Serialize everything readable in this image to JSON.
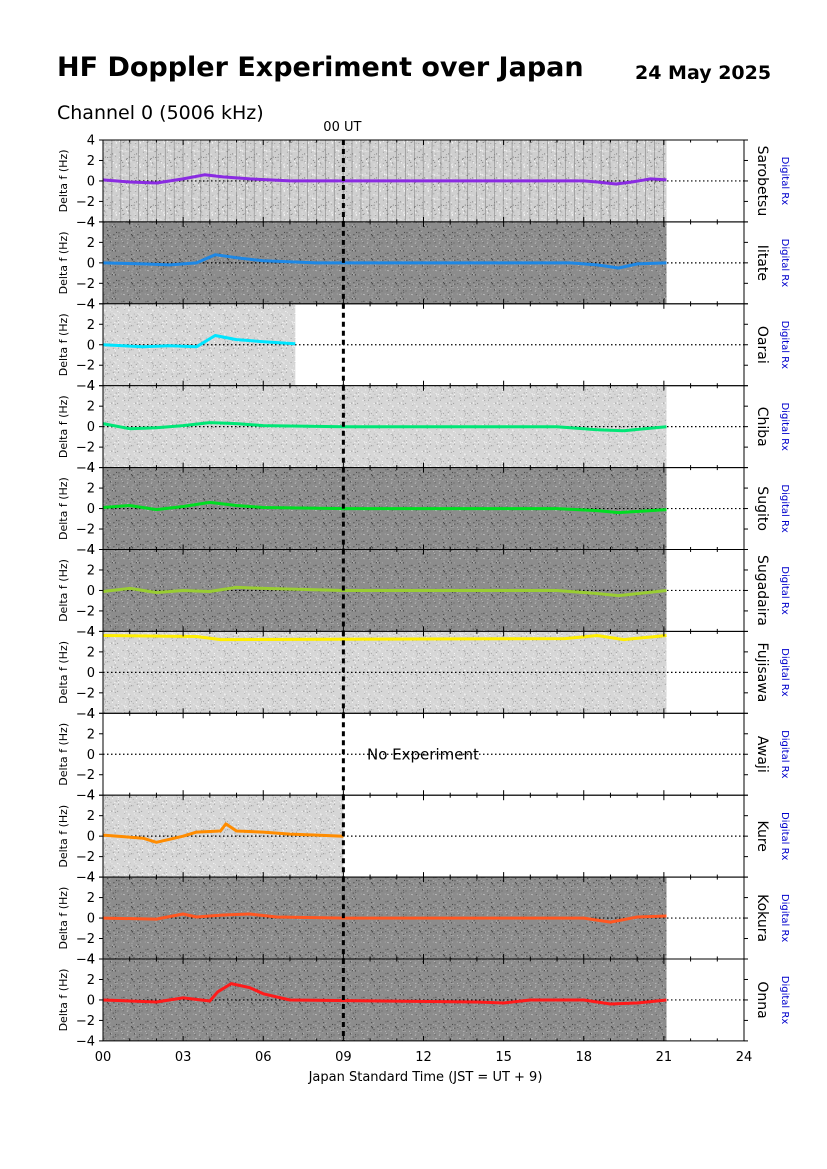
{
  "header": {
    "title": "HF Doppler Experiment over Japan",
    "date": "24 May 2025",
    "channel": "Channel 0 (5006 kHz)"
  },
  "chart_data": {
    "type": "spectrogram-stack",
    "xlabel": "Japan Standard Time (JST = UT + 9)",
    "x_range": [
      0,
      24
    ],
    "x_ticks": [
      "00",
      "03",
      "06",
      "09",
      "12",
      "15",
      "18",
      "21",
      "24"
    ],
    "ut_marker": {
      "label": "00 UT",
      "x": 9
    },
    "ylabel": "Delta f (Hz)",
    "y_range": [
      -4,
      4
    ],
    "y_ticks": [
      "4",
      "2",
      "0",
      "−2",
      "−4"
    ],
    "receiver_label": "Digital Rx",
    "no_experiment_text": "No Experiment",
    "panels": [
      {
        "station": "Sarobetsu",
        "color": "#8a2be2",
        "data_end": 21.1,
        "background": "striped-light",
        "trace": [
          [
            0,
            0.1
          ],
          [
            1,
            -0.1
          ],
          [
            2,
            -0.2
          ],
          [
            3,
            0.2
          ],
          [
            3.8,
            0.6
          ],
          [
            4.5,
            0.4
          ],
          [
            5.5,
            0.2
          ],
          [
            7,
            0
          ],
          [
            18,
            0
          ],
          [
            18.5,
            -0.1
          ],
          [
            19.2,
            -0.3
          ],
          [
            19.8,
            -0.1
          ],
          [
            20.5,
            0.2
          ],
          [
            21.1,
            0.1
          ]
        ]
      },
      {
        "station": "Iitate",
        "color": "#1e88e5",
        "data_end": 21.1,
        "background": "dark",
        "trace": [
          [
            0,
            0
          ],
          [
            1.5,
            -0.1
          ],
          [
            2.5,
            -0.2
          ],
          [
            3.5,
            0
          ],
          [
            4.2,
            0.8
          ],
          [
            5,
            0.5
          ],
          [
            6,
            0.2
          ],
          [
            8,
            0
          ],
          [
            17.5,
            0
          ],
          [
            18.5,
            -0.2
          ],
          [
            19.3,
            -0.5
          ],
          [
            20,
            -0.1
          ],
          [
            21.1,
            0
          ]
        ]
      },
      {
        "station": "Oarai",
        "color": "#00e5ff",
        "data_end": 7.2,
        "background": "light",
        "trace": [
          [
            0,
            0
          ],
          [
            1.5,
            -0.2
          ],
          [
            2.5,
            -0.1
          ],
          [
            3.5,
            -0.2
          ],
          [
            4.2,
            0.9
          ],
          [
            5,
            0.5
          ],
          [
            6,
            0.3
          ],
          [
            7.2,
            0.1
          ]
        ]
      },
      {
        "station": "Chiba",
        "color": "#00e676",
        "data_end": 21.1,
        "background": "light",
        "trace": [
          [
            0,
            0.3
          ],
          [
            1,
            -0.2
          ],
          [
            2,
            -0.1
          ],
          [
            3,
            0.1
          ],
          [
            4,
            0.4
          ],
          [
            5,
            0.3
          ],
          [
            6,
            0.1
          ],
          [
            9,
            0
          ],
          [
            17,
            0
          ],
          [
            18.5,
            -0.3
          ],
          [
            19.5,
            -0.4
          ],
          [
            21.1,
            0
          ]
        ]
      },
      {
        "station": "Sugito",
        "color": "#00dd22",
        "data_end": 21.1,
        "background": "dark",
        "trace": [
          [
            0,
            0.1
          ],
          [
            1,
            0.3
          ],
          [
            2,
            -0.1
          ],
          [
            3,
            0.2
          ],
          [
            4,
            0.6
          ],
          [
            5,
            0.3
          ],
          [
            6,
            0.1
          ],
          [
            9,
            0
          ],
          [
            17,
            0
          ],
          [
            18.5,
            -0.2
          ],
          [
            19.3,
            -0.4
          ],
          [
            21.1,
            -0.1
          ]
        ]
      },
      {
        "station": "Sugadaira",
        "color": "#9acd32",
        "data_end": 21.1,
        "background": "dark",
        "trace": [
          [
            0,
            -0.1
          ],
          [
            1,
            0.2
          ],
          [
            2,
            -0.2
          ],
          [
            3,
            0
          ],
          [
            4,
            -0.1
          ],
          [
            5,
            0.3
          ],
          [
            6,
            0.2
          ],
          [
            9,
            0
          ],
          [
            17,
            0
          ],
          [
            18.5,
            -0.3
          ],
          [
            19.3,
            -0.5
          ],
          [
            21.1,
            0
          ]
        ]
      },
      {
        "station": "Fujisawa",
        "color": "#ffee00",
        "data_end": 21.1,
        "background": "light",
        "trace": [
          [
            0,
            3.6
          ],
          [
            3.5,
            3.5
          ],
          [
            4.4,
            3.2
          ],
          [
            17.3,
            3.3
          ],
          [
            18.5,
            3.6
          ],
          [
            19.5,
            3.2
          ],
          [
            21.1,
            3.6
          ]
        ]
      },
      {
        "station": "Awaji",
        "color": "#000000",
        "data_end": 0,
        "background": "none",
        "trace": []
      },
      {
        "station": "Kure",
        "color": "#ff8c00",
        "data_end": 9.0,
        "background": "light",
        "trace": [
          [
            0,
            0.1
          ],
          [
            1.5,
            -0.2
          ],
          [
            2,
            -0.6
          ],
          [
            3,
            0
          ],
          [
            3.5,
            0.4
          ],
          [
            4.4,
            0.5
          ],
          [
            4.6,
            1.2
          ],
          [
            5,
            0.5
          ],
          [
            6,
            0.4
          ],
          [
            7,
            0.2
          ],
          [
            8,
            0.1
          ],
          [
            9,
            0
          ]
        ]
      },
      {
        "station": "Kokura",
        "color": "#ff5722",
        "data_end": 21.1,
        "background": "dark",
        "trace": [
          [
            0,
            0
          ],
          [
            2,
            -0.1
          ],
          [
            3,
            0.4
          ],
          [
            3.5,
            0.1
          ],
          [
            4.5,
            0.3
          ],
          [
            5.5,
            0.4
          ],
          [
            6.5,
            0.1
          ],
          [
            9,
            0
          ],
          [
            18,
            0
          ],
          [
            19,
            -0.4
          ],
          [
            20,
            0.1
          ],
          [
            21.1,
            0.2
          ]
        ]
      },
      {
        "station": "Onna",
        "color": "#ff1a1a",
        "data_end": 21.1,
        "background": "dark",
        "trace": [
          [
            0,
            0
          ],
          [
            2,
            -0.2
          ],
          [
            3,
            0.2
          ],
          [
            4,
            -0.1
          ],
          [
            4.3,
            0.8
          ],
          [
            4.8,
            1.6
          ],
          [
            5.5,
            1.2
          ],
          [
            6,
            0.6
          ],
          [
            7,
            0
          ],
          [
            14,
            -0.2
          ],
          [
            15,
            -0.3
          ],
          [
            16,
            0
          ],
          [
            18,
            0
          ],
          [
            19,
            -0.4
          ],
          [
            20,
            -0.3
          ],
          [
            21.1,
            0
          ]
        ]
      }
    ]
  }
}
